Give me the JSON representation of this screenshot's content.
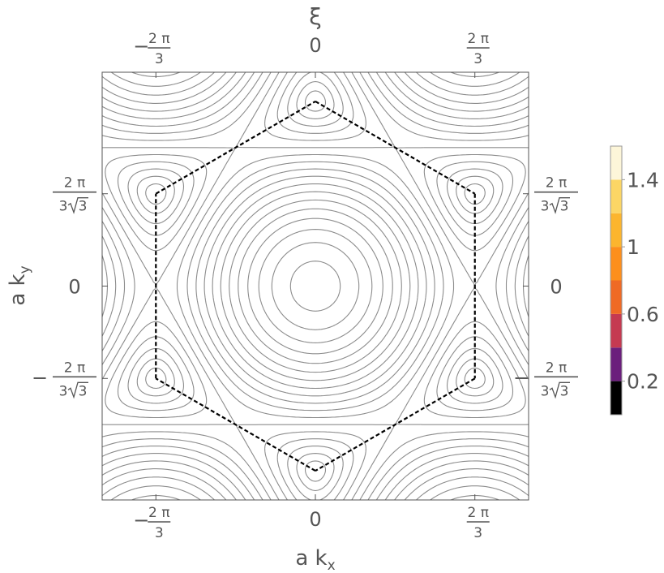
{
  "chart_data": {
    "type": "contour",
    "title": "ξ",
    "xlabel": {
      "base": "a k",
      "sub": "x"
    },
    "ylabel": {
      "base": "a k",
      "sub": "y"
    },
    "xlim": [
      -2.8,
      2.8
    ],
    "ylim": [
      -2.8,
      2.8
    ],
    "x_ticks": [
      {
        "value": -2.0944,
        "sign": "−",
        "num": "2 π",
        "den": "3"
      },
      {
        "value": 0,
        "text": "0"
      },
      {
        "value": 2.0944,
        "sign": "",
        "num": "2 π",
        "den": "3"
      }
    ],
    "y_ticks": [
      {
        "value": 1.2092,
        "sign": "",
        "num": "2 π",
        "den_pre": "3 ",
        "den_rad": "3"
      },
      {
        "value": 0,
        "text": "0"
      },
      {
        "value": -1.2092,
        "sign": "−",
        "num": "2 π",
        "den_pre": "3 ",
        "den_rad": "3"
      }
    ],
    "dirac_points": [
      [
        0,
        2.4184
      ],
      [
        2.0944,
        1.2092
      ],
      [
        2.0944,
        -1.2092
      ],
      [
        0,
        -2.4184
      ],
      [
        -2.0944,
        -1.2092
      ],
      [
        -2.0944,
        1.2092
      ]
    ],
    "colorbar": {
      "range": [
        0,
        1.6
      ],
      "bands": [
        {
          "from": 0.0,
          "to": 0.2,
          "color": "#000000"
        },
        {
          "from": 0.2,
          "to": 0.4,
          "color": "#6b1f7c"
        },
        {
          "from": 0.4,
          "to": 0.6,
          "color": "#c53a51"
        },
        {
          "from": 0.6,
          "to": 0.8,
          "color": "#ef6a25"
        },
        {
          "from": 0.8,
          "to": 1.0,
          "color": "#fd8f1c"
        },
        {
          "from": 1.0,
          "to": 1.2,
          "color": "#fcb52e"
        },
        {
          "from": 1.2,
          "to": 1.4,
          "color": "#fcd665"
        },
        {
          "from": 1.4,
          "to": 1.6,
          "color": "#fdf6d9"
        }
      ],
      "tick_labels": [
        {
          "value": 0.2,
          "text": "0.2"
        },
        {
          "value": 0.6,
          "text": "0.6"
        },
        {
          "value": 1.0,
          "text": "1"
        },
        {
          "value": 1.4,
          "text": "1.4"
        }
      ]
    },
    "contour_line_color": "#8c8c8c",
    "dashed_line_color": "#000000",
    "grid": false,
    "legend": "colorbar-right"
  }
}
